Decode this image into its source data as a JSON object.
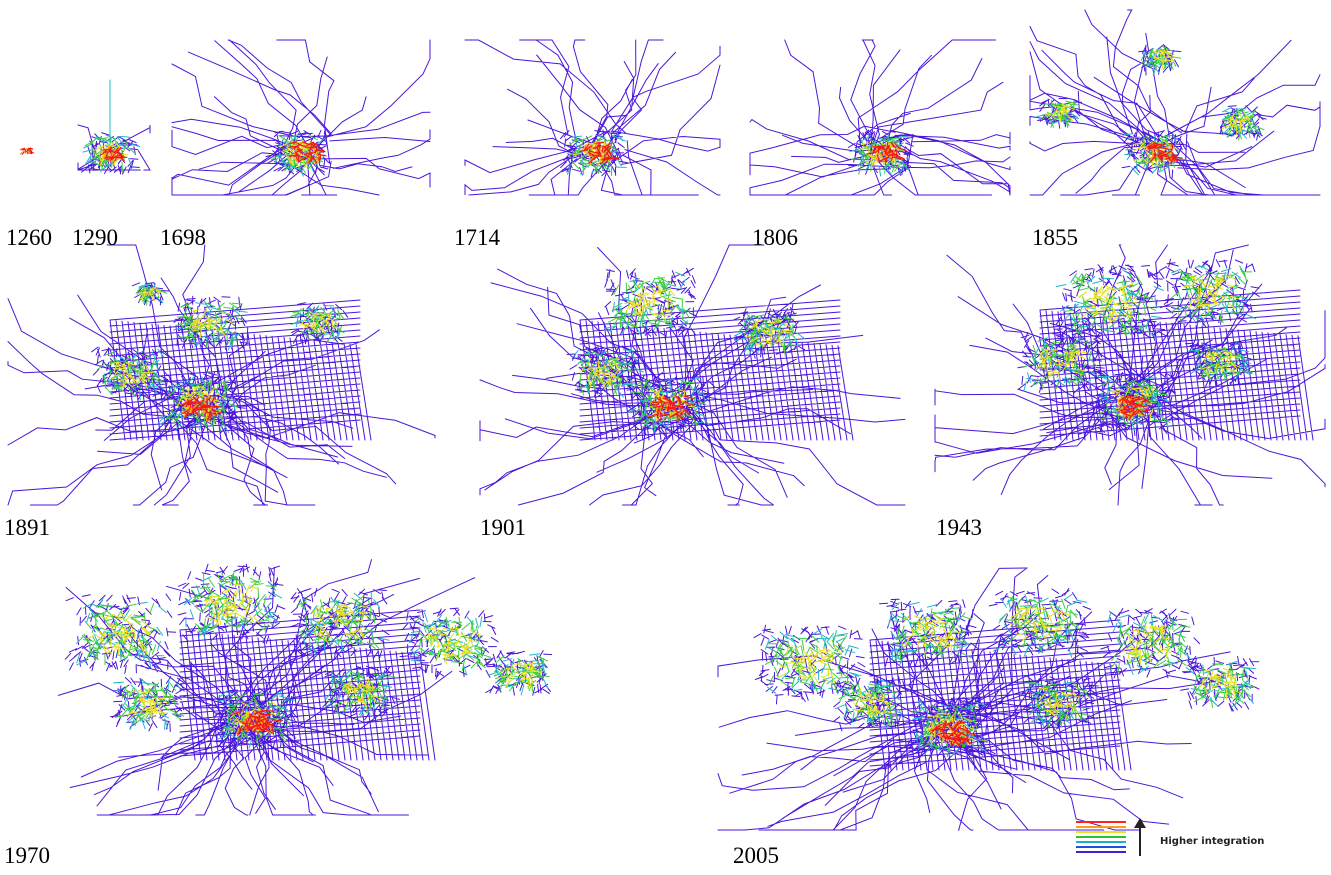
{
  "panels": [
    {
      "label": "1260"
    },
    {
      "label": "1290"
    },
    {
      "label": "1698"
    },
    {
      "label": "1714"
    },
    {
      "label": "1806"
    },
    {
      "label": "1855"
    },
    {
      "label": "1891"
    },
    {
      "label": "1901"
    },
    {
      "label": "1943"
    },
    {
      "label": "1970"
    },
    {
      "label": "2005"
    }
  ],
  "legend": {
    "label": "Higher integration"
  }
}
